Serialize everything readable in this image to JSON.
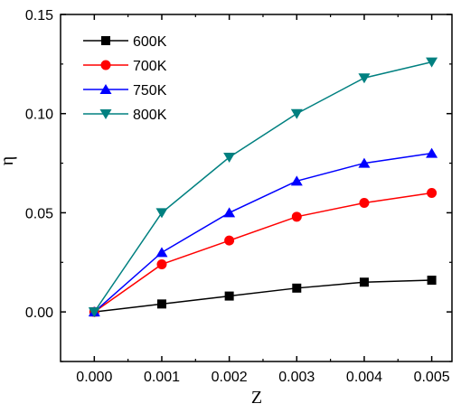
{
  "chart_data": {
    "type": "line",
    "title": "",
    "xlabel": "Z",
    "ylabel": "η",
    "x": [
      0.0,
      0.001,
      0.002,
      0.003,
      0.004,
      0.005
    ],
    "x_tick_labels": [
      "0.000",
      "0.001",
      "0.002",
      "0.003",
      "0.004",
      "0.005"
    ],
    "y_ticks": [
      0.0,
      0.05,
      0.1,
      0.15
    ],
    "y_tick_labels": [
      "0.00",
      "0.05",
      "0.10",
      "0.15"
    ],
    "xlim": [
      -0.0005,
      0.0053
    ],
    "ylim": [
      -0.025,
      0.15
    ],
    "grid": false,
    "legend_position": "top-left",
    "series": [
      {
        "name": "600K",
        "color": "#000000",
        "marker": "square",
        "values": [
          0.0,
          0.004,
          0.008,
          0.012,
          0.015,
          0.016
        ]
      },
      {
        "name": "700K",
        "color": "#ff0000",
        "marker": "circle",
        "values": [
          0.0,
          0.024,
          0.036,
          0.048,
          0.055,
          0.06
        ]
      },
      {
        "name": "750K",
        "color": "#0000ff",
        "marker": "triangle-up",
        "values": [
          0.0,
          0.03,
          0.05,
          0.066,
          0.075,
          0.08
        ]
      },
      {
        "name": "800K",
        "color": "#008080",
        "marker": "triangle-down",
        "values": [
          0.0,
          0.05,
          0.078,
          0.1,
          0.118,
          0.126
        ]
      }
    ]
  }
}
